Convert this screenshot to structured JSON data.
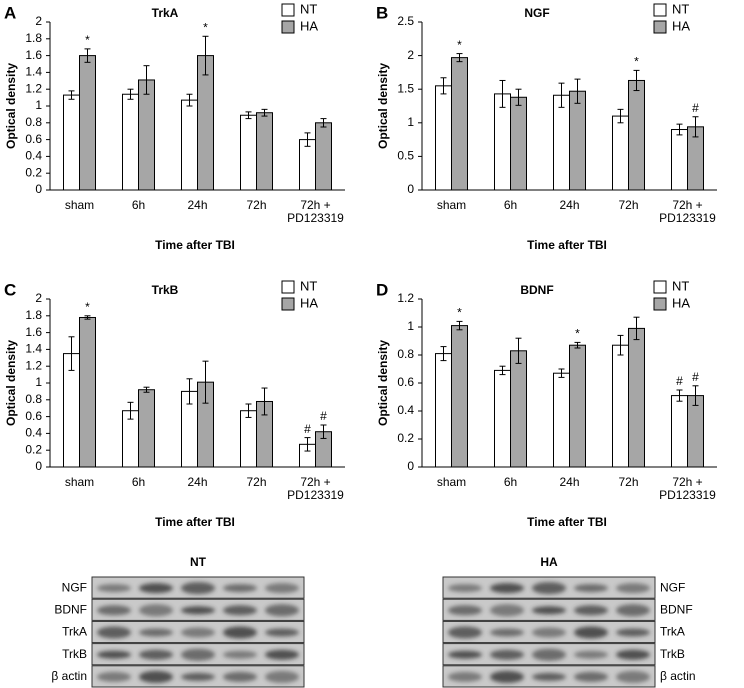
{
  "chart_data": [
    {
      "type": "bar",
      "panel": "A",
      "title": "TrkA",
      "ylabel": "Optical density",
      "xlabel": "Time after TBI",
      "categories": [
        "sham",
        "6h",
        "24h",
        "72h",
        "72h + PD123319"
      ],
      "ylim": [
        0,
        2
      ],
      "yticks": [
        0,
        0.2,
        0.4,
        0.6,
        0.8,
        1,
        1.2,
        1.4,
        1.6,
        1.8,
        2
      ],
      "legend": "top-right",
      "series": [
        {
          "name": "NT",
          "color": "#ffffff",
          "values": [
            1.13,
            1.14,
            1.07,
            0.89,
            0.6
          ],
          "errors": [
            0.05,
            0.06,
            0.07,
            0.04,
            0.08
          ],
          "annotations": [
            null,
            null,
            null,
            null,
            null
          ]
        },
        {
          "name": "HA",
          "color": "#a6a6a6",
          "values": [
            1.6,
            1.31,
            1.6,
            0.92,
            0.8
          ],
          "errors": [
            0.08,
            0.17,
            0.23,
            0.04,
            0.05
          ],
          "annotations": [
            "*",
            null,
            "*",
            null,
            null
          ]
        }
      ]
    },
    {
      "type": "bar",
      "panel": "B",
      "title": "NGF",
      "ylabel": "Optical density",
      "xlabel": "Time after TBI",
      "categories": [
        "sham",
        "6h",
        "24h",
        "72h",
        "72h + PD123319"
      ],
      "ylim": [
        0,
        2.5
      ],
      "yticks": [
        0,
        0.5,
        1,
        1.5,
        2,
        2.5
      ],
      "legend": "top-right",
      "series": [
        {
          "name": "NT",
          "color": "#ffffff",
          "values": [
            1.55,
            1.43,
            1.41,
            1.1,
            0.9
          ],
          "errors": [
            0.12,
            0.2,
            0.18,
            0.1,
            0.08
          ],
          "annotations": [
            null,
            null,
            null,
            null,
            null
          ]
        },
        {
          "name": "HA",
          "color": "#a6a6a6",
          "values": [
            1.97,
            1.38,
            1.47,
            1.63,
            0.94
          ],
          "errors": [
            0.06,
            0.12,
            0.18,
            0.15,
            0.15
          ],
          "annotations": [
            "*",
            null,
            null,
            "*",
            "#"
          ]
        }
      ]
    },
    {
      "type": "bar",
      "panel": "C",
      "title": "TrkB",
      "ylabel": "Optical density",
      "xlabel": "Time after TBI",
      "categories": [
        "sham",
        "6h",
        "24h",
        "72h",
        "72h + PD123319"
      ],
      "ylim": [
        0,
        2
      ],
      "yticks": [
        0,
        0.2,
        0.4,
        0.6,
        0.8,
        1,
        1.2,
        1.4,
        1.6,
        1.8,
        2
      ],
      "legend": "top-right",
      "series": [
        {
          "name": "NT",
          "color": "#ffffff",
          "values": [
            1.35,
            0.67,
            0.9,
            0.67,
            0.27
          ],
          "errors": [
            0.2,
            0.1,
            0.15,
            0.08,
            0.08
          ],
          "annotations": [
            null,
            null,
            null,
            null,
            "#"
          ]
        },
        {
          "name": "HA",
          "color": "#a6a6a6",
          "values": [
            1.78,
            0.92,
            1.01,
            0.78,
            0.42
          ],
          "errors": [
            0.02,
            0.03,
            0.25,
            0.16,
            0.08
          ],
          "annotations": [
            "*",
            null,
            null,
            null,
            "#"
          ]
        }
      ]
    },
    {
      "type": "bar",
      "panel": "D",
      "title": "BDNF",
      "ylabel": "Optical density",
      "xlabel": "Time after TBI",
      "categories": [
        "sham",
        "6h",
        "24h",
        "72h",
        "72h + PD123319"
      ],
      "ylim": [
        0,
        1.2
      ],
      "yticks": [
        0,
        0.2,
        0.4,
        0.6,
        0.8,
        1,
        1.2
      ],
      "legend": "top-right",
      "series": [
        {
          "name": "NT",
          "color": "#ffffff",
          "values": [
            0.81,
            0.69,
            0.67,
            0.87,
            0.51
          ],
          "errors": [
            0.05,
            0.03,
            0.03,
            0.07,
            0.04
          ],
          "annotations": [
            null,
            null,
            null,
            null,
            "#"
          ]
        },
        {
          "name": "HA",
          "color": "#a6a6a6",
          "values": [
            1.01,
            0.83,
            0.87,
            0.99,
            0.51
          ],
          "errors": [
            0.03,
            0.09,
            0.02,
            0.08,
            0.07
          ],
          "annotations": [
            "*",
            null,
            "*",
            null,
            "#"
          ]
        }
      ]
    }
  ],
  "blots": [
    {
      "title": "NT",
      "rows": [
        "NGF",
        "BDNF",
        "TrkA",
        "TrkB",
        "β actin"
      ]
    },
    {
      "title": "HA",
      "rows": [
        "NGF",
        "BDNF",
        "TrkA",
        "TrkB",
        "β actin"
      ]
    }
  ]
}
